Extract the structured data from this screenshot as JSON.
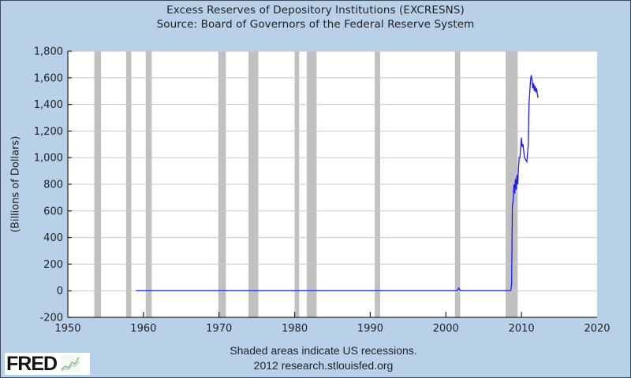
{
  "header": {
    "title": "Excess Reserves of Depository Institutions (EXCRESNS)",
    "source": "Source: Board of Governors of the Federal Reserve System"
  },
  "footer": {
    "note": "Shaded areas indicate US recessions.",
    "credit": "2012 research.stlouisfed.org"
  },
  "logo": {
    "text": "FRED",
    "icon": "line-chart-icon"
  },
  "colors": {
    "background": "#b8d0e8",
    "plot": "#ffffff",
    "series": "#1a1aff",
    "recession": "#c0c0c0",
    "grid": "#c8c8c8"
  },
  "chart_data": {
    "type": "line",
    "title": "Excess Reserves of Depository Institutions (EXCRESNS)",
    "subtitle": "Source: Board of Governors of the Federal Reserve System",
    "xlabel": "",
    "ylabel": "(Billions of Dollars)",
    "xlim": [
      1950,
      2020
    ],
    "ylim": [
      -200,
      1800
    ],
    "xticks": [
      1950,
      1960,
      1970,
      1980,
      1990,
      2000,
      2010,
      2020
    ],
    "yticks": [
      -200,
      0,
      200,
      400,
      600,
      800,
      1000,
      1200,
      1400,
      1600,
      1800
    ],
    "ytick_labels": [
      "-200",
      "0",
      "200",
      "400",
      "600",
      "800",
      "1,000",
      "1,200",
      "1,400",
      "1,600",
      "1,800"
    ],
    "grid": {
      "horizontal": true,
      "vertical": false
    },
    "legend": null,
    "annotation": "Shaded areas indicate US recessions.",
    "recessions": [
      [
        1953.5,
        1954.4
      ],
      [
        1957.7,
        1958.4
      ],
      [
        1960.3,
        1961.1
      ],
      [
        1969.9,
        1970.9
      ],
      [
        1973.9,
        1975.2
      ],
      [
        1980.0,
        1980.6
      ],
      [
        1981.6,
        1982.9
      ],
      [
        1990.6,
        1991.3
      ],
      [
        2001.2,
        2001.9
      ],
      [
        2007.9,
        2009.5
      ]
    ],
    "series": [
      {
        "name": "EXCRESNS",
        "x": [
          1959.0,
          1970.0,
          1980.0,
          1990.0,
          2000.0,
          2001.5,
          2001.7,
          2001.9,
          2005.0,
          2008.6,
          2008.7,
          2008.75,
          2008.8,
          2008.9,
          2009.0,
          2009.1,
          2009.2,
          2009.3,
          2009.4,
          2009.5,
          2009.6,
          2009.7,
          2009.8,
          2009.9,
          2010.0,
          2010.1,
          2010.2,
          2010.3,
          2010.4,
          2010.5,
          2010.7,
          2010.9,
          2011.0,
          2011.1,
          2011.2,
          2011.3,
          2011.4,
          2011.5,
          2011.6,
          2011.7,
          2011.8,
          2011.9,
          2012.0,
          2012.1,
          2012.2
        ],
        "y": [
          2,
          2,
          2,
          2,
          2,
          2,
          20,
          2,
          2,
          2,
          60,
          400,
          640,
          680,
          800,
          730,
          840,
          760,
          870,
          800,
          920,
          1000,
          1000,
          1080,
          1150,
          1080,
          1100,
          1050,
          1000,
          990,
          970,
          1100,
          1400,
          1500,
          1580,
          1620,
          1580,
          1520,
          1560,
          1500,
          1540,
          1490,
          1520,
          1480,
          1450
        ]
      }
    ]
  }
}
